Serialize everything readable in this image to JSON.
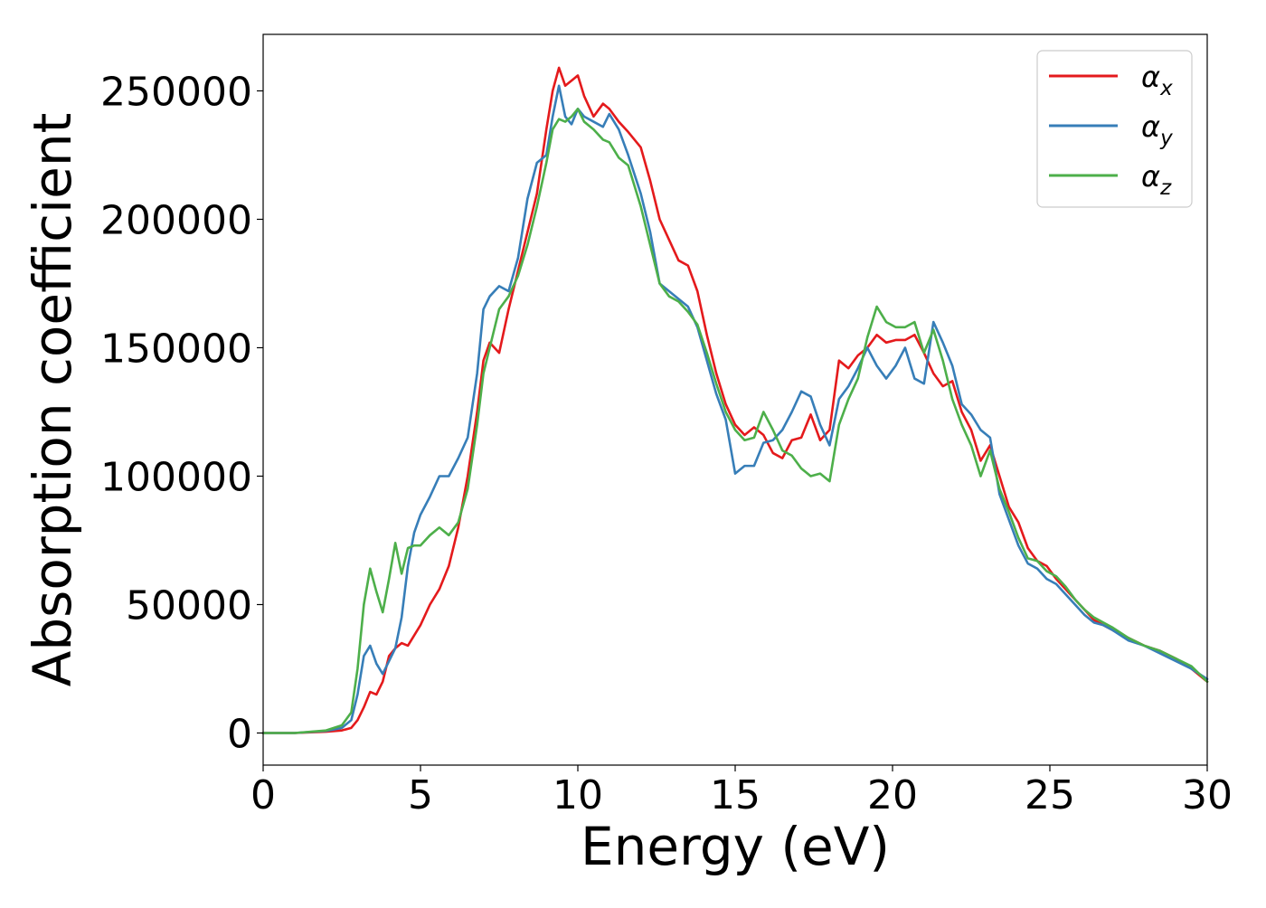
{
  "chart_data": {
    "type": "line",
    "title": "",
    "xlabel": "Energy (eV)",
    "ylabel": "Absorption coefficient",
    "xlim": [
      0,
      30
    ],
    "ylim": [
      -12500,
      272000
    ],
    "xticks": [
      0,
      5,
      10,
      15,
      20,
      25,
      30
    ],
    "yticks": [
      0,
      50000,
      100000,
      150000,
      200000,
      250000
    ],
    "grid": false,
    "legend_position": "top-right",
    "series": [
      {
        "name": "αx",
        "legend_main": "α",
        "legend_sub": "x",
        "color": "#e41a1c",
        "x": [
          0,
          1,
          2,
          2.5,
          2.8,
          3.0,
          3.2,
          3.4,
          3.6,
          3.8,
          4.0,
          4.2,
          4.4,
          4.6,
          4.8,
          5.0,
          5.3,
          5.6,
          5.9,
          6.2,
          6.5,
          6.8,
          7.0,
          7.2,
          7.5,
          7.8,
          8.1,
          8.4,
          8.7,
          9.0,
          9.2,
          9.4,
          9.6,
          9.8,
          10.0,
          10.2,
          10.5,
          10.8,
          11.0,
          11.3,
          11.6,
          12.0,
          12.3,
          12.6,
          12.9,
          13.2,
          13.5,
          13.8,
          14.1,
          14.4,
          14.7,
          15.0,
          15.3,
          15.6,
          15.9,
          16.2,
          16.5,
          16.8,
          17.1,
          17.4,
          17.7,
          18.0,
          18.3,
          18.6,
          18.9,
          19.2,
          19.5,
          19.8,
          20.1,
          20.4,
          20.7,
          21.0,
          21.3,
          21.6,
          21.9,
          22.2,
          22.5,
          22.8,
          23.1,
          23.4,
          23.7,
          24.0,
          24.3,
          24.6,
          24.9,
          25.2,
          25.5,
          25.8,
          26.1,
          26.4,
          26.7,
          27.0,
          27.5,
          28.0,
          28.5,
          29.0,
          29.5,
          30.0
        ],
        "y": [
          0,
          0,
          500,
          1000,
          2000,
          5000,
          10000,
          16000,
          15000,
          20000,
          30000,
          33000,
          35000,
          34000,
          38000,
          42000,
          50000,
          56000,
          65000,
          80000,
          100000,
          125000,
          145000,
          152000,
          148000,
          165000,
          180000,
          195000,
          210000,
          235000,
          250000,
          259000,
          252000,
          254000,
          256000,
          248000,
          240000,
          245000,
          243000,
          238000,
          234000,
          228000,
          215000,
          200000,
          192000,
          184000,
          182000,
          172000,
          155000,
          140000,
          128000,
          120000,
          116000,
          119000,
          116000,
          109000,
          107000,
          114000,
          115000,
          124000,
          114000,
          118000,
          145000,
          142000,
          147000,
          150000,
          155000,
          152000,
          153000,
          153000,
          155000,
          148000,
          140000,
          135000,
          137000,
          125000,
          118000,
          106000,
          112000,
          100000,
          88000,
          82000,
          72000,
          67000,
          65000,
          60000,
          56000,
          52000,
          48000,
          44000,
          42000,
          40000,
          37000,
          34000,
          32000,
          29000,
          25000,
          20000
        ]
      },
      {
        "name": "αy",
        "legend_main": "α",
        "legend_sub": "y",
        "color": "#377eb8",
        "x": [
          0,
          1,
          2,
          2.5,
          2.8,
          3.0,
          3.2,
          3.4,
          3.6,
          3.8,
          4.0,
          4.2,
          4.4,
          4.6,
          4.8,
          5.0,
          5.3,
          5.6,
          5.9,
          6.2,
          6.5,
          6.8,
          7.0,
          7.2,
          7.5,
          7.8,
          8.1,
          8.4,
          8.7,
          9.0,
          9.2,
          9.4,
          9.6,
          9.8,
          10.0,
          10.2,
          10.5,
          10.8,
          11.0,
          11.3,
          11.6,
          12.0,
          12.3,
          12.6,
          12.9,
          13.2,
          13.5,
          13.8,
          14.1,
          14.4,
          14.7,
          15.0,
          15.3,
          15.6,
          15.9,
          16.2,
          16.5,
          16.8,
          17.1,
          17.4,
          17.7,
          18.0,
          18.3,
          18.6,
          18.9,
          19.2,
          19.5,
          19.8,
          20.1,
          20.4,
          20.7,
          21.0,
          21.3,
          21.6,
          21.9,
          22.2,
          22.5,
          22.8,
          23.1,
          23.4,
          23.7,
          24.0,
          24.3,
          24.6,
          24.9,
          25.2,
          25.5,
          25.8,
          26.1,
          26.4,
          26.7,
          27.0,
          27.5,
          28.0,
          28.5,
          29.0,
          29.5,
          30.0
        ],
        "y": [
          0,
          0,
          800,
          2000,
          5000,
          15000,
          30000,
          34000,
          27000,
          23000,
          28000,
          33000,
          45000,
          65000,
          78000,
          85000,
          92000,
          100000,
          100000,
          107000,
          115000,
          140000,
          165000,
          170000,
          174000,
          172000,
          185000,
          208000,
          222000,
          225000,
          240000,
          252000,
          240000,
          237000,
          243000,
          240000,
          238000,
          236000,
          241000,
          235000,
          225000,
          210000,
          195000,
          175000,
          172000,
          169000,
          166000,
          158000,
          145000,
          132000,
          122000,
          101000,
          104000,
          104000,
          113000,
          114000,
          118000,
          125000,
          133000,
          131000,
          120000,
          112000,
          130000,
          135000,
          142000,
          150000,
          143000,
          138000,
          143000,
          150000,
          138000,
          136000,
          160000,
          152000,
          143000,
          128000,
          124000,
          118000,
          115000,
          93000,
          83000,
          73000,
          66000,
          64000,
          60000,
          58000,
          54000,
          50000,
          46000,
          43000,
          42000,
          40000,
          36000,
          34000,
          31000,
          28000,
          25000,
          21000
        ]
      },
      {
        "name": "αz",
        "legend_main": "α",
        "legend_sub": "z",
        "color": "#4daf4a",
        "x": [
          0,
          1,
          2,
          2.5,
          2.8,
          3.0,
          3.2,
          3.4,
          3.6,
          3.8,
          4.0,
          4.2,
          4.4,
          4.6,
          4.8,
          5.0,
          5.3,
          5.6,
          5.9,
          6.2,
          6.5,
          6.8,
          7.0,
          7.2,
          7.5,
          7.8,
          8.1,
          8.4,
          8.7,
          9.0,
          9.2,
          9.4,
          9.6,
          9.8,
          10.0,
          10.2,
          10.5,
          10.8,
          11.0,
          11.3,
          11.6,
          12.0,
          12.3,
          12.6,
          12.9,
          13.2,
          13.5,
          13.8,
          14.1,
          14.4,
          14.7,
          15.0,
          15.3,
          15.6,
          15.9,
          16.2,
          16.5,
          16.8,
          17.1,
          17.4,
          17.7,
          18.0,
          18.3,
          18.6,
          18.9,
          19.2,
          19.5,
          19.8,
          20.1,
          20.4,
          20.7,
          21.0,
          21.3,
          21.6,
          21.9,
          22.2,
          22.5,
          22.8,
          23.1,
          23.4,
          23.7,
          24.0,
          24.3,
          24.6,
          24.9,
          25.2,
          25.5,
          25.8,
          26.1,
          26.4,
          26.7,
          27.0,
          27.5,
          28.0,
          28.5,
          29.0,
          29.5,
          30.0
        ],
        "y": [
          0,
          0,
          1000,
          3000,
          8000,
          25000,
          50000,
          64000,
          55000,
          47000,
          60000,
          74000,
          62000,
          72000,
          73000,
          73000,
          77000,
          80000,
          77000,
          82000,
          95000,
          120000,
          140000,
          150000,
          165000,
          170000,
          178000,
          190000,
          205000,
          222000,
          235000,
          239000,
          238000,
          240000,
          243000,
          238000,
          235000,
          231000,
          230000,
          224000,
          221000,
          205000,
          190000,
          175000,
          170000,
          168000,
          164000,
          159000,
          148000,
          136000,
          125000,
          118000,
          114000,
          115000,
          125000,
          118000,
          110000,
          108000,
          103000,
          100000,
          101000,
          98000,
          120000,
          130000,
          138000,
          154000,
          166000,
          160000,
          158000,
          158000,
          160000,
          148000,
          157000,
          145000,
          130000,
          120000,
          112000,
          100000,
          110000,
          95000,
          86000,
          76000,
          68000,
          67000,
          63000,
          61000,
          57000,
          52000,
          48000,
          45000,
          43000,
          41000,
          37000,
          34000,
          32000,
          29000,
          26000,
          20000
        ]
      }
    ]
  }
}
